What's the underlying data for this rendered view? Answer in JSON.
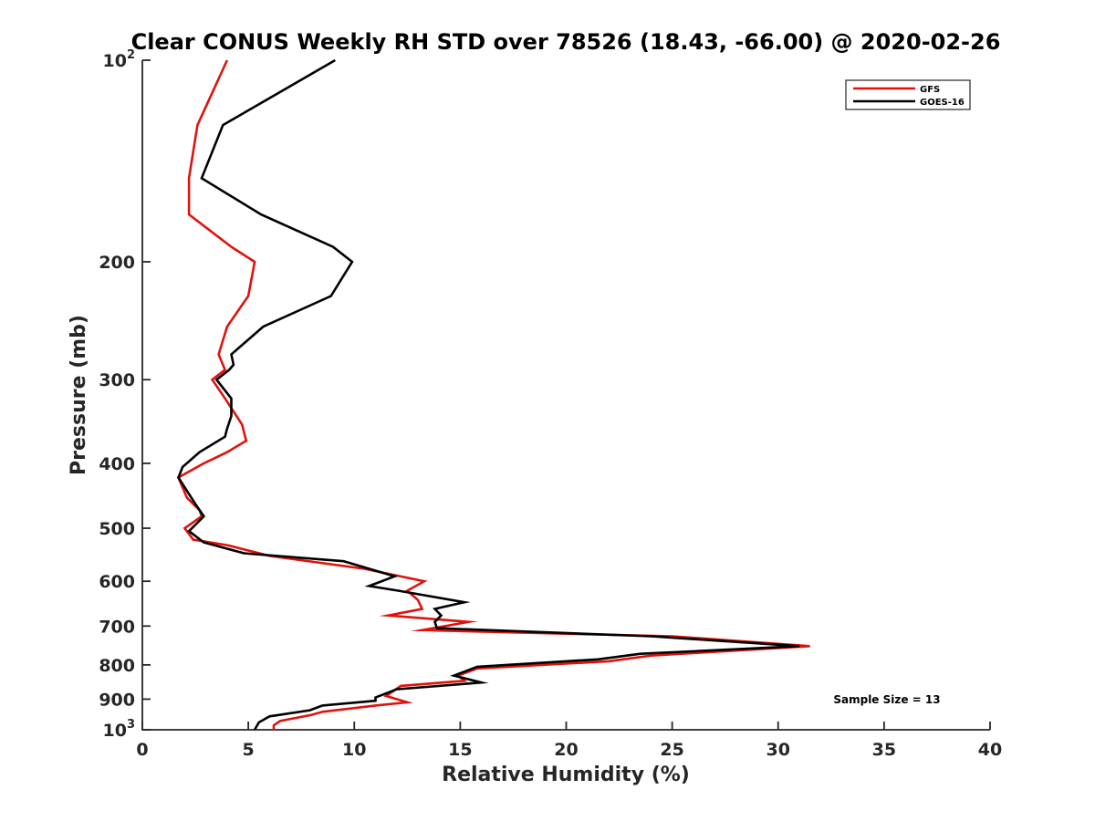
{
  "chart_data": {
    "type": "line",
    "title": "Clear CONUS Weekly RH STD over 78526 (18.43, -66.00) @ 2020-02-26",
    "xlabel": "Relative Humidity (%)",
    "ylabel": "Pressure (mb)",
    "xlim": [
      0,
      40
    ],
    "ylim": [
      100,
      1000
    ],
    "y_scale": "log",
    "y_reversed": true,
    "grid": false,
    "legend_position": "top-right",
    "annotation": "Sample Size = 13",
    "x_ticks": [
      "0",
      "5",
      "10",
      "15",
      "20",
      "25",
      "30",
      "35",
      "40"
    ],
    "y_ticks": [
      {
        "value": 100,
        "base": "10",
        "exp": "2"
      },
      {
        "value": 200,
        "label": "200"
      },
      {
        "value": 300,
        "label": "300"
      },
      {
        "value": 400,
        "label": "400"
      },
      {
        "value": 500,
        "label": "500"
      },
      {
        "value": 600,
        "label": "600"
      },
      {
        "value": 700,
        "label": "700"
      },
      {
        "value": 800,
        "label": "800"
      },
      {
        "value": 900,
        "label": "900"
      },
      {
        "value": 1000,
        "base": "10",
        "exp": "3"
      }
    ],
    "series": [
      {
        "name": "GFS",
        "color": "#e0120c",
        "points": [
          [
            4.0,
            100
          ],
          [
            2.6,
            125
          ],
          [
            2.2,
            150
          ],
          [
            2.2,
            170
          ],
          [
            4.2,
            190
          ],
          [
            5.3,
            200
          ],
          [
            5.0,
            225
          ],
          [
            4.0,
            250
          ],
          [
            3.6,
            275
          ],
          [
            3.9,
            290
          ],
          [
            3.3,
            300
          ],
          [
            3.9,
            320
          ],
          [
            4.7,
            350
          ],
          [
            4.9,
            370
          ],
          [
            4.0,
            385
          ],
          [
            2.9,
            400
          ],
          [
            1.7,
            420
          ],
          [
            2.1,
            450
          ],
          [
            2.7,
            470
          ],
          [
            2.8,
            480
          ],
          [
            2.0,
            500
          ],
          [
            2.4,
            520
          ],
          [
            4.0,
            530
          ],
          [
            6.0,
            550
          ],
          [
            10.5,
            575
          ],
          [
            13.3,
            600
          ],
          [
            12.5,
            620
          ],
          [
            13.0,
            640
          ],
          [
            13.2,
            660
          ],
          [
            11.6,
            675
          ],
          [
            15.4,
            690
          ],
          [
            13.2,
            710
          ],
          [
            25.0,
            725
          ],
          [
            31.5,
            750
          ],
          [
            24.0,
            775
          ],
          [
            22.0,
            790
          ],
          [
            15.8,
            810
          ],
          [
            14.9,
            830
          ],
          [
            15.2,
            845
          ],
          [
            12.2,
            860
          ],
          [
            11.5,
            890
          ],
          [
            12.5,
            910
          ],
          [
            11.0,
            920
          ],
          [
            8.5,
            940
          ],
          [
            8.0,
            950
          ],
          [
            6.5,
            970
          ],
          [
            6.2,
            985
          ],
          [
            6.2,
            1000
          ]
        ]
      },
      {
        "name": "GOES-16",
        "color": "#000000",
        "points": [
          [
            9.1,
            100
          ],
          [
            3.8,
            125
          ],
          [
            2.8,
            150
          ],
          [
            5.6,
            170
          ],
          [
            9.0,
            190
          ],
          [
            9.9,
            200
          ],
          [
            8.9,
            225
          ],
          [
            5.7,
            250
          ],
          [
            4.2,
            275
          ],
          [
            4.3,
            285
          ],
          [
            4.1,
            290
          ],
          [
            3.5,
            300
          ],
          [
            4.2,
            320
          ],
          [
            4.2,
            340
          ],
          [
            4.0,
            355
          ],
          [
            3.9,
            365
          ],
          [
            2.7,
            385
          ],
          [
            1.9,
            405
          ],
          [
            1.7,
            420
          ],
          [
            2.5,
            460
          ],
          [
            2.9,
            480
          ],
          [
            2.2,
            505
          ],
          [
            2.9,
            525
          ],
          [
            4.8,
            545
          ],
          [
            9.5,
            560
          ],
          [
            11.9,
            590
          ],
          [
            10.7,
            610
          ],
          [
            12.1,
            620
          ],
          [
            15.2,
            645
          ],
          [
            13.8,
            660
          ],
          [
            14.1,
            675
          ],
          [
            13.8,
            690
          ],
          [
            13.9,
            705
          ],
          [
            24.0,
            725
          ],
          [
            31.0,
            750
          ],
          [
            23.5,
            770
          ],
          [
            21.5,
            785
          ],
          [
            15.8,
            805
          ],
          [
            14.7,
            830
          ],
          [
            16.0,
            850
          ],
          [
            12.0,
            870
          ],
          [
            11.0,
            895
          ],
          [
            11.0,
            905
          ],
          [
            8.5,
            920
          ],
          [
            7.9,
            935
          ],
          [
            6.0,
            955
          ],
          [
            5.5,
            975
          ],
          [
            5.3,
            1000
          ]
        ]
      }
    ]
  }
}
